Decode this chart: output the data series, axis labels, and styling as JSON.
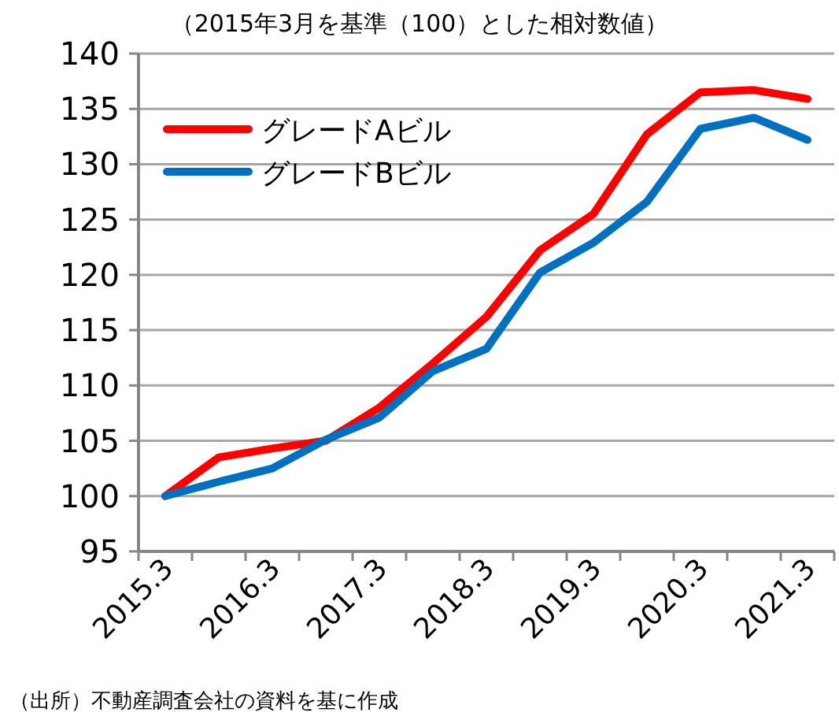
{
  "chart_data": {
    "type": "line",
    "title": "（2015年3月を基準（100）とした相対数値）",
    "categories": [
      "2015.3",
      null,
      "2016.3",
      null,
      "2017.3",
      null,
      "2018.3",
      null,
      "2019.3",
      null,
      "2020.3",
      null,
      "2021.3"
    ],
    "series": [
      {
        "name": "グレードAビル",
        "color": "#ff0000",
        "values": [
          100,
          103.5,
          104.3,
          105.0,
          108.0,
          112.0,
          116.2,
          122.2,
          125.5,
          132.7,
          136.5,
          136.7,
          135.9
        ]
      },
      {
        "name": "グレードBビル",
        "color": "#0070c0",
        "values": [
          100,
          101.3,
          102.5,
          105.1,
          107.1,
          111.3,
          113.3,
          120.2,
          122.9,
          126.6,
          133.2,
          134.2,
          132.2
        ]
      }
    ],
    "ylim": [
      95,
      140
    ],
    "yticks": [
      95,
      100,
      105,
      110,
      115,
      120,
      125,
      130,
      135,
      140
    ],
    "grid": "y",
    "legend": "top left",
    "marker": "none",
    "line_style": "solid",
    "annotations": [
      "（出所）不動産調査会社の資料を基に作成"
    ]
  }
}
